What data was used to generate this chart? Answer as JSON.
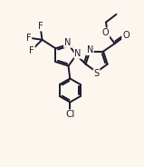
{
  "bg_color": "#fdf6ee",
  "bond_color": "#1a1a2e",
  "atom_color": "#1a1a2e",
  "bond_width": 1.4,
  "font_size": 7.0,
  "fig_width": 1.59,
  "fig_height": 1.84,
  "dpi": 100,
  "xlim": [
    0,
    9
  ],
  "ylim": [
    0,
    10.5
  ]
}
